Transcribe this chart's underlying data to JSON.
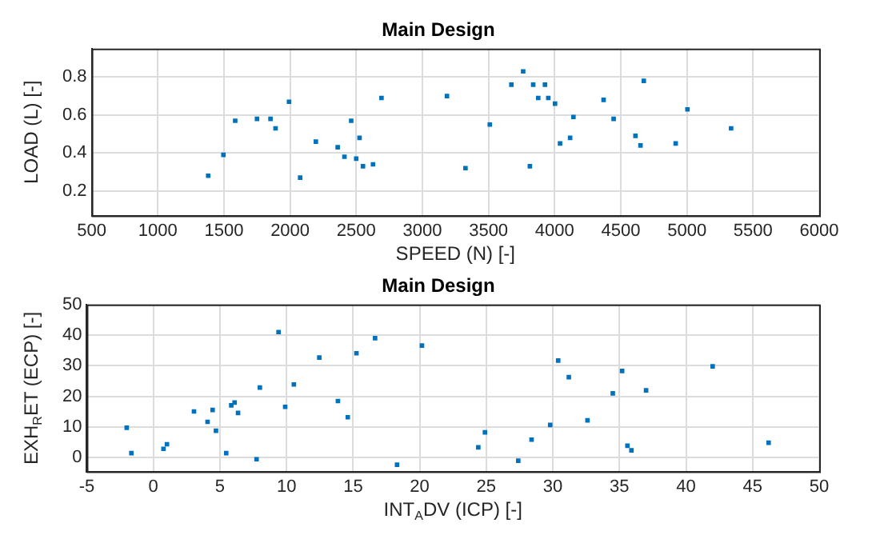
{
  "chart_data": [
    {
      "type": "scatter",
      "title": "Main Design",
      "xlabel": "SPEED (N) [-]",
      "ylabel": "LOAD (L) [-]",
      "xlim": [
        500,
        6000
      ],
      "xticks": [
        500,
        1000,
        1500,
        2000,
        2500,
        3000,
        3500,
        4000,
        4500,
        5000,
        5500,
        6000
      ],
      "ylim": [
        0.07,
        0.95
      ],
      "yticks": [
        0.2,
        0.4,
        0.6,
        0.8
      ],
      "grid": true,
      "marker": "square",
      "legend": false,
      "series": [
        {
          "color": "#0072bd",
          "x": [
            1381,
            1496,
            1585,
            1750,
            1852,
            1890,
            1992,
            2076,
            2195,
            2360,
            2411,
            2462,
            2500,
            2525,
            2551,
            2627,
            2691,
            3186,
            3326,
            3510,
            3673,
            3762,
            3838,
            3813,
            3876,
            3927,
            3952,
            4003,
            4041,
            4117,
            4142,
            4370,
            4446,
            4611,
            4649,
            4674,
            4915,
            5004,
            5334
          ],
          "values": [
            0.28,
            0.39,
            0.57,
            0.58,
            0.58,
            0.53,
            0.67,
            0.27,
            0.46,
            0.43,
            0.38,
            0.57,
            0.37,
            0.48,
            0.33,
            0.34,
            0.69,
            0.7,
            0.32,
            0.55,
            0.76,
            0.83,
            0.76,
            0.33,
            0.69,
            0.76,
            0.69,
            0.66,
            0.45,
            0.48,
            0.59,
            0.68,
            0.58,
            0.49,
            0.44,
            0.78,
            0.45,
            0.63,
            0.53
          ]
        }
      ]
    },
    {
      "type": "scatter",
      "title": "Main Design",
      "xlabel": "INT$_{A}$DV (ICP) [-]",
      "ylabel": "EXH$_{R}$ET (ECP) [-]",
      "xlim": [
        -5,
        50
      ],
      "xticks": [
        -5,
        0,
        5,
        10,
        15,
        20,
        25,
        30,
        35,
        40,
        45,
        50
      ],
      "ylim": [
        -4.5,
        50
      ],
      "yticks": [
        0,
        10,
        20,
        30,
        40,
        50
      ],
      "grid": true,
      "marker": "square",
      "legend": false,
      "series": [
        {
          "color": "#0072bd",
          "x": [
            -2.0,
            -1.65,
            0.76,
            1.02,
            3.05,
            4.07,
            4.45,
            4.7,
            5.47,
            5.85,
            6.1,
            6.36,
            7.75,
            8.0,
            9.4,
            9.9,
            10.55,
            12.46,
            13.86,
            14.6,
            15.25,
            16.65,
            18.3,
            20.17,
            24.4,
            24.9,
            27.4,
            28.4,
            29.8,
            30.4,
            31.2,
            32.6,
            34.5,
            35.2,
            35.6,
            35.9,
            37.0,
            42.0,
            46.2
          ],
          "values": [
            9.8,
            1.5,
            2.9,
            4.4,
            15.1,
            11.7,
            15.6,
            8.8,
            1.5,
            17.1,
            18.0,
            14.6,
            -0.5,
            22.9,
            41.0,
            16.6,
            23.9,
            32.7,
            18.5,
            13.2,
            34.1,
            39.0,
            -2.3,
            36.6,
            3.4,
            8.3,
            -1.0,
            5.9,
            10.7,
            31.7,
            26.3,
            12.2,
            21.0,
            28.3,
            3.9,
            2.4,
            22.0,
            29.8,
            4.9
          ]
        }
      ]
    }
  ]
}
